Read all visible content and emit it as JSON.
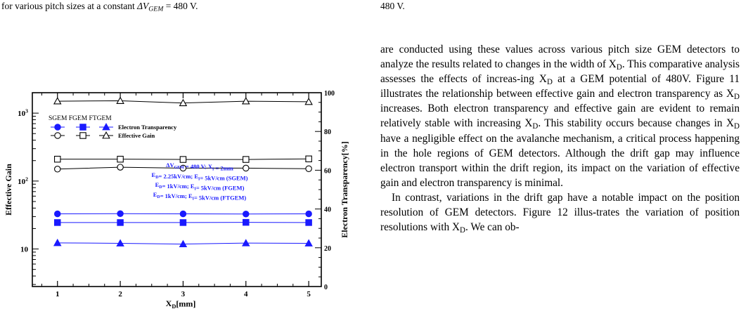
{
  "left_column": {
    "caption_fragment_before": "for various pitch sizes at a constant ",
    "caption_fragment_symbol": "ΔV",
    "caption_fragment_sub": "GEM",
    "caption_fragment_after": " = 480 V."
  },
  "right_column": {
    "top_fragment": "480 V.",
    "paragraph1": [
      {
        "t": "are conducted using these values across various pitch size GEM detectors to analyze the results related to changes in the width of X"
      },
      {
        "t": "D",
        "sub": true
      },
      {
        "t": ". This comparative analysis assesses the effects of increas-ing X"
      },
      {
        "t": "D",
        "sub": true
      },
      {
        "t": " at a GEM potential of 480V. Figure 11 illustrates the relationship between effective gain and electron transparency as X"
      },
      {
        "t": "D",
        "sub": true
      },
      {
        "t": " increases. Both electron transparency and effective gain are evident to remain relatively stable with increasing X"
      },
      {
        "t": "D",
        "sub": true
      },
      {
        "t": ". This stability occurs because changes in X"
      },
      {
        "t": "D",
        "sub": true
      },
      {
        "t": " have a negligible effect on the avalanche mechanism, a critical process happening in the hole regions of GEM detectors. Although the drift gap may influence electron transport within the drift region, its impact on the variation of effective gain and electron transparency is minimal."
      }
    ],
    "paragraph2": [
      {
        "t": "In contrast, variations in the drift gap have a notable impact on the position resolution of GEM detectors. Figure 12 illus-trates the variation of position resolutions with X"
      },
      {
        "t": "D",
        "sub": true
      },
      {
        "t": ". We can ob-"
      }
    ]
  },
  "chart_data": {
    "type": "scatter",
    "x": [
      1,
      2,
      3,
      4,
      5
    ],
    "xlabel_main": "X",
    "xlabel_sub": "D",
    "xlabel_unit": "[mm]",
    "ylabel_left": "Effective Gain",
    "ylabel_right": "Electron Transparency[%]",
    "xlim": [
      0.6,
      5.2
    ],
    "ylim_left_log": [
      2.8,
      2000
    ],
    "ylim_right": [
      0,
      100
    ],
    "xticks": [
      "1",
      "2",
      "3",
      "4",
      "5"
    ],
    "yticks_left": [
      {
        "value": 10,
        "base": "10",
        "exp": ""
      },
      {
        "value": 100,
        "base": "10",
        "exp": "2"
      },
      {
        "value": 1000,
        "base": "10",
        "exp": "3"
      }
    ],
    "yticks_right": [
      "0",
      "20",
      "40",
      "60",
      "80",
      "100"
    ],
    "legend": {
      "header": "SGEM FGEM FTGEM",
      "row1_label": "Electron Transparency",
      "row2_label": "Effective Gain"
    },
    "annotation": [
      [
        {
          "t": "ΔV"
        },
        {
          "t": "GEM",
          "sub": true
        },
        {
          "t": " = 480 V;  X"
        },
        {
          "t": "I",
          "sub": true
        },
        {
          "t": " = 2mm"
        }
      ],
      [
        {
          "t": "E"
        },
        {
          "t": "D",
          "sub": true
        },
        {
          "t": "= 2.25kV/cm; E"
        },
        {
          "t": "I",
          "sub": true
        },
        {
          "t": "= 5kV/cm (SGEM)"
        }
      ],
      [
        {
          "t": "E"
        },
        {
          "t": "D",
          "sub": true
        },
        {
          "t": "= 1kV/cm; E"
        },
        {
          "t": "I",
          "sub": true
        },
        {
          "t": "= 5kV/cm (FGEM)"
        }
      ],
      [
        {
          "t": "E"
        },
        {
          "t": "D",
          "sub": true
        },
        {
          "t": "= 1kV/cm; E"
        },
        {
          "t": "I",
          "sub": true
        },
        {
          "t": "= 5kV/cm (FTGEM)"
        }
      ]
    ],
    "series": [
      {
        "detector": "SGEM",
        "quantity": "Electron Transparency",
        "axis": "right",
        "marker": "filled-circle",
        "color": "#1a1aff",
        "values": [
          37.5,
          37.6,
          37.5,
          37.4,
          37.5
        ]
      },
      {
        "detector": "FGEM",
        "quantity": "Electron Transparency",
        "axis": "right",
        "marker": "filled-square",
        "color": "#1a1aff",
        "values": [
          33.0,
          33.0,
          33.0,
          33.1,
          33.0
        ]
      },
      {
        "detector": "FTGEM",
        "quantity": "Electron Transparency",
        "axis": "right",
        "marker": "filled-triangle",
        "color": "#1a1aff",
        "values": [
          22.5,
          22.3,
          21.9,
          22.4,
          22.3
        ]
      },
      {
        "detector": "SGEM",
        "quantity": "Effective Gain",
        "axis": "left",
        "marker": "open-circle",
        "color": "#000000",
        "values": [
          150,
          160,
          155,
          155,
          152
        ]
      },
      {
        "detector": "FGEM",
        "quantity": "Effective Gain",
        "axis": "left",
        "marker": "open-square",
        "color": "#000000",
        "values": [
          210,
          210,
          208,
          208,
          212
        ]
      },
      {
        "detector": "FTGEM",
        "quantity": "Effective Gain",
        "axis": "left",
        "marker": "open-triangle",
        "color": "#000000",
        "values": [
          1500,
          1520,
          1410,
          1500,
          1470
        ]
      }
    ]
  }
}
